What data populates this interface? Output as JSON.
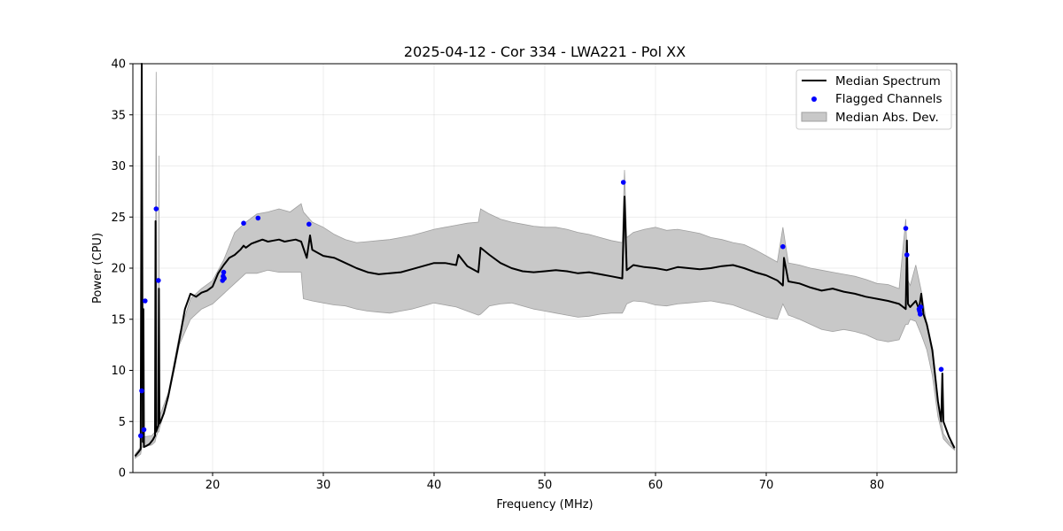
{
  "chart_data": {
    "type": "line",
    "title": "2025-04-12 - Cor 334 - LWA221 - Pol XX",
    "xlabel": "Frequency (MHz)",
    "ylabel": "Power (CPU)",
    "xlim": [
      12.8,
      87.2
    ],
    "ylim": [
      0,
      40
    ],
    "xticks": [
      20,
      30,
      40,
      50,
      60,
      70,
      80
    ],
    "yticks": [
      0,
      5,
      10,
      15,
      20,
      25,
      30,
      35,
      40
    ],
    "grid": true,
    "legend_position": "top-right",
    "legend": [
      "Median Spectrum",
      "Flagged Channels",
      "Median Abs. Dev."
    ],
    "colors": {
      "median": "#000000",
      "flagged": "#0000ff",
      "mad_fill": "#c8c8c8",
      "mad_edge": "#a0a0a0"
    },
    "series": [
      {
        "name": "Median Spectrum",
        "x": [
          13.0,
          13.3,
          13.5,
          13.6,
          13.7,
          13.75,
          13.8,
          14.0,
          14.3,
          14.6,
          14.8,
          14.85,
          14.9,
          15.0,
          15.1,
          15.15,
          15.2,
          15.3,
          15.6,
          16.0,
          16.5,
          17.0,
          17.5,
          18.0,
          18.5,
          19.0,
          19.5,
          20.0,
          20.5,
          21.0,
          21.5,
          22.0,
          22.5,
          22.8,
          23.0,
          23.5,
          24.0,
          24.5,
          25.0,
          25.5,
          26.0,
          26.5,
          27.0,
          27.5,
          28.0,
          28.5,
          28.8,
          29.0,
          29.5,
          30.0,
          31.0,
          32.0,
          33.0,
          34.0,
          35.0,
          36.0,
          37.0,
          38.0,
          39.0,
          40.0,
          41.0,
          42.0,
          42.2,
          43.0,
          44.0,
          44.2,
          45.0,
          46.0,
          47.0,
          48.0,
          49.0,
          50.0,
          51.0,
          52.0,
          53.0,
          54.0,
          55.0,
          56.0,
          57.0,
          57.2,
          57.4,
          58.0,
          59.0,
          60.0,
          61.0,
          62.0,
          63.0,
          64.0,
          65.0,
          66.0,
          67.0,
          68.0,
          69.0,
          70.0,
          71.0,
          71.5,
          71.6,
          72.0,
          73.0,
          74.0,
          75.0,
          76.0,
          77.0,
          78.0,
          79.0,
          80.0,
          81.0,
          82.0,
          82.6,
          82.7,
          82.8,
          83.0,
          83.5,
          83.8,
          84.0,
          84.2,
          84.5,
          85.0,
          85.5,
          85.8,
          85.9,
          86.0,
          86.5,
          87.0
        ],
        "values": [
          1.6,
          2.0,
          2.3,
          40.0,
          3.0,
          16.0,
          2.5,
          2.6,
          2.8,
          3.2,
          3.6,
          24.6,
          4.0,
          4.3,
          4.6,
          18.0,
          4.8,
          5.0,
          5.8,
          7.5,
          10.2,
          13.0,
          16.0,
          17.5,
          17.2,
          17.6,
          17.8,
          18.2,
          19.5,
          20.3,
          21.0,
          21.3,
          21.8,
          22.2,
          22.0,
          22.4,
          22.6,
          22.8,
          22.6,
          22.7,
          22.8,
          22.6,
          22.7,
          22.8,
          22.6,
          21.0,
          23.2,
          21.8,
          21.5,
          21.2,
          21.0,
          20.5,
          20.0,
          19.6,
          19.4,
          19.5,
          19.6,
          19.9,
          20.2,
          20.5,
          20.5,
          20.3,
          21.3,
          20.2,
          19.6,
          22.0,
          21.3,
          20.5,
          20.0,
          19.7,
          19.6,
          19.7,
          19.8,
          19.7,
          19.5,
          19.6,
          19.4,
          19.2,
          19.0,
          27.0,
          19.8,
          20.3,
          20.1,
          20.0,
          19.8,
          20.1,
          20.0,
          19.9,
          20.0,
          20.2,
          20.3,
          20.0,
          19.6,
          19.3,
          18.8,
          18.3,
          21.0,
          18.7,
          18.5,
          18.1,
          17.8,
          18.0,
          17.7,
          17.5,
          17.2,
          17.0,
          16.8,
          16.5,
          16.0,
          22.7,
          16.5,
          16.2,
          16.8,
          16.0,
          17.5,
          15.5,
          14.5,
          12.0,
          7.0,
          5.0,
          9.7,
          5.0,
          3.5,
          2.4
        ]
      },
      {
        "name": "Flagged Channels",
        "x": [
          13.5,
          13.6,
          13.8,
          13.9,
          14.9,
          15.1,
          20.9,
          20.95,
          21.0,
          21.05,
          22.8,
          24.1,
          28.7,
          57.1,
          71.5,
          82.6,
          82.7,
          83.8,
          83.85,
          83.9,
          83.95,
          85.8
        ],
        "values": [
          3.6,
          8.0,
          4.2,
          16.8,
          25.8,
          18.8,
          18.8,
          19.2,
          19.6,
          19.0,
          24.4,
          24.9,
          24.3,
          28.4,
          22.1,
          23.9,
          21.3,
          16.0,
          15.8,
          15.5,
          16.2,
          10.1
        ]
      },
      {
        "name": "Median Abs. Dev.",
        "x": [
          13.0,
          13.5,
          13.6,
          13.7,
          14.5,
          14.8,
          14.9,
          15.0,
          15.1,
          15.15,
          15.2,
          16.0,
          17.0,
          18.0,
          19.0,
          20.0,
          21.0,
          22.0,
          23.0,
          24.0,
          25.0,
          26.0,
          27.0,
          28.0,
          28.2,
          29.0,
          30.0,
          31.0,
          32.0,
          33.0,
          34.0,
          35.0,
          36.0,
          37.0,
          38.0,
          39.0,
          40.0,
          41.0,
          42.0,
          43.0,
          44.0,
          44.2,
          45.0,
          46.0,
          47.0,
          48.0,
          49.0,
          50.0,
          51.0,
          52.0,
          53.0,
          54.0,
          55.0,
          56.0,
          57.0,
          57.2,
          57.4,
          58.0,
          59.0,
          60.0,
          61.0,
          62.0,
          63.0,
          64.0,
          65.0,
          66.0,
          67.0,
          68.0,
          69.0,
          70.0,
          71.0,
          71.5,
          72.0,
          73.0,
          74.0,
          75.0,
          76.0,
          77.0,
          78.0,
          79.0,
          80.0,
          81.0,
          82.0,
          82.6,
          82.8,
          83.0,
          83.5,
          84.0,
          84.5,
          85.0,
          85.5,
          86.0,
          86.5,
          87.0
        ],
        "upper": [
          1.8,
          2.5,
          40.0,
          3.5,
          3.6,
          4.0,
          39.2,
          5.0,
          5.0,
          31.0,
          5.5,
          7.8,
          13.5,
          17.0,
          18.0,
          18.8,
          20.8,
          23.5,
          24.5,
          25.3,
          25.5,
          25.8,
          25.5,
          26.3,
          25.5,
          24.5,
          24.0,
          23.3,
          22.8,
          22.5,
          22.6,
          22.7,
          22.8,
          23.0,
          23.2,
          23.5,
          23.8,
          24.0,
          24.2,
          24.4,
          24.5,
          25.8,
          25.3,
          24.8,
          24.5,
          24.3,
          24.1,
          24.0,
          24.0,
          23.8,
          23.5,
          23.3,
          23.0,
          22.7,
          22.5,
          29.6,
          23.0,
          23.5,
          23.8,
          24.0,
          23.7,
          23.8,
          23.6,
          23.4,
          23.0,
          22.8,
          22.5,
          22.3,
          21.8,
          21.2,
          20.6,
          24.0,
          20.5,
          20.3,
          20.0,
          19.8,
          19.6,
          19.4,
          19.2,
          18.9,
          18.5,
          18.4,
          18.0,
          24.8,
          18.8,
          18.3,
          20.3,
          17.8,
          14.5,
          11.5,
          7.0,
          3.8,
          3.0,
          2.6
        ],
        "lower": [
          1.4,
          1.8,
          2.5,
          2.5,
          2.7,
          3.0,
          3.5,
          3.8,
          4.0,
          4.0,
          4.3,
          7.2,
          12.5,
          15.0,
          16.0,
          16.5,
          17.5,
          18.5,
          19.5,
          19.5,
          19.8,
          19.6,
          19.6,
          19.6,
          17.0,
          16.8,
          16.6,
          16.4,
          16.3,
          16.0,
          15.8,
          15.7,
          15.6,
          15.8,
          16.0,
          16.3,
          16.6,
          16.4,
          16.2,
          15.8,
          15.4,
          15.5,
          16.3,
          16.5,
          16.6,
          16.3,
          16.0,
          15.8,
          15.6,
          15.4,
          15.2,
          15.3,
          15.5,
          15.6,
          15.6,
          16.0,
          16.5,
          16.8,
          16.7,
          16.4,
          16.3,
          16.5,
          16.6,
          16.7,
          16.8,
          16.6,
          16.4,
          16.0,
          15.6,
          15.2,
          15.0,
          16.5,
          15.4,
          15.0,
          14.5,
          14.0,
          13.8,
          14.0,
          13.8,
          13.5,
          13.0,
          12.8,
          13.0,
          14.5,
          14.5,
          15.0,
          14.8,
          13.5,
          12.0,
          9.5,
          5.5,
          3.3,
          2.7,
          2.2
        ]
      }
    ]
  }
}
